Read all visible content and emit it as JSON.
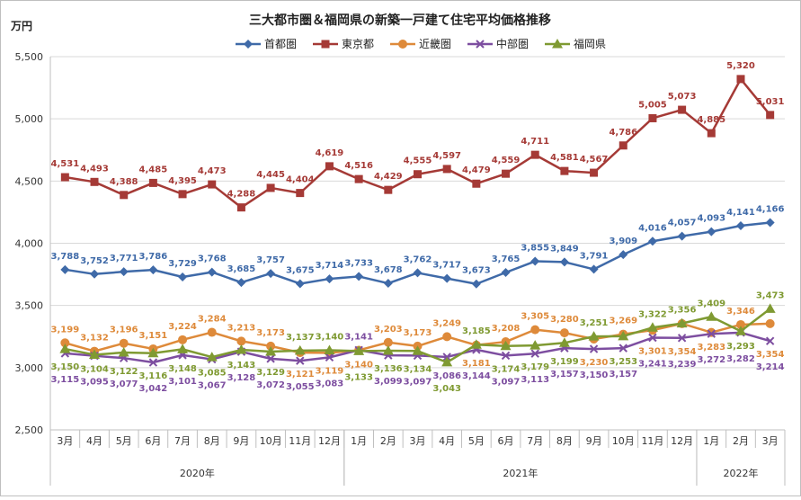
{
  "chart_data": {
    "type": "line",
    "title": "三大都市圏＆福岡県の新築一戸建て住宅平均価格推移",
    "ylabel": "万円",
    "ylim": [
      2500,
      5500
    ],
    "yticks": [
      "2,500",
      "3,000",
      "3,500",
      "4,000",
      "4,500",
      "5,000",
      "5,500"
    ],
    "grid": true,
    "legend_position": "top",
    "categories": [
      "3月",
      "4月",
      "5月",
      "6月",
      "7月",
      "8月",
      "9月",
      "10月",
      "11月",
      "12月",
      "1月",
      "2月",
      "3月",
      "4月",
      "5月",
      "6月",
      "7月",
      "8月",
      "9月",
      "10月",
      "11月",
      "12月",
      "1月",
      "2月",
      "3月"
    ],
    "year_groups": [
      {
        "label": "2020年",
        "start": 0,
        "end": 9
      },
      {
        "label": "2021年",
        "start": 10,
        "end": 21
      },
      {
        "label": "2022年",
        "start": 22,
        "end": 24
      }
    ],
    "series": [
      {
        "name": "首都圏",
        "color": "#3f6aa8",
        "marker": "diamond",
        "values": [
          3788,
          3752,
          3771,
          3786,
          3729,
          3768,
          3685,
          3757,
          3675,
          3714,
          3733,
          3678,
          3762,
          3717,
          3673,
          3765,
          3855,
          3849,
          3791,
          3909,
          4016,
          4057,
          4093,
          4141,
          4166
        ]
      },
      {
        "name": "東京都",
        "color": "#a53a36",
        "marker": "square",
        "values": [
          4531,
          4493,
          4388,
          4485,
          4395,
          4473,
          4288,
          4445,
          4404,
          4619,
          4516,
          4429,
          4555,
          4597,
          4479,
          4559,
          4711,
          4581,
          4567,
          4786,
          5005,
          5073,
          4885,
          5320,
          5031
        ]
      },
      {
        "name": "近畿圏",
        "color": "#de8a3a",
        "marker": "circle",
        "values": [
          3199,
          3132,
          3196,
          3151,
          3224,
          3284,
          3213,
          3173,
          3121,
          3119,
          3140,
          3203,
          3173,
          3249,
          3181,
          3208,
          3305,
          3280,
          3230,
          3269,
          3301,
          3354,
          3283,
          3346,
          3354
        ]
      },
      {
        "name": "中部圏",
        "color": "#7d4ea0",
        "marker": "x",
        "values": [
          3115,
          3095,
          3077,
          3042,
          3101,
          3067,
          3128,
          3072,
          3055,
          3083,
          3141,
          3099,
          3097,
          3086,
          3144,
          3097,
          3113,
          3157,
          3150,
          3157,
          3241,
          3239,
          3272,
          3282,
          3214
        ]
      },
      {
        "name": "福岡県",
        "color": "#7f9a32",
        "marker": "triangle",
        "values": [
          3150,
          3104,
          3122,
          3116,
          3148,
          3085,
          3143,
          3129,
          3137,
          3140,
          3133,
          3136,
          3134,
          3043,
          3185,
          3174,
          3179,
          3199,
          3251,
          3253,
          3322,
          3356,
          3409,
          3293,
          3473
        ]
      }
    ]
  }
}
